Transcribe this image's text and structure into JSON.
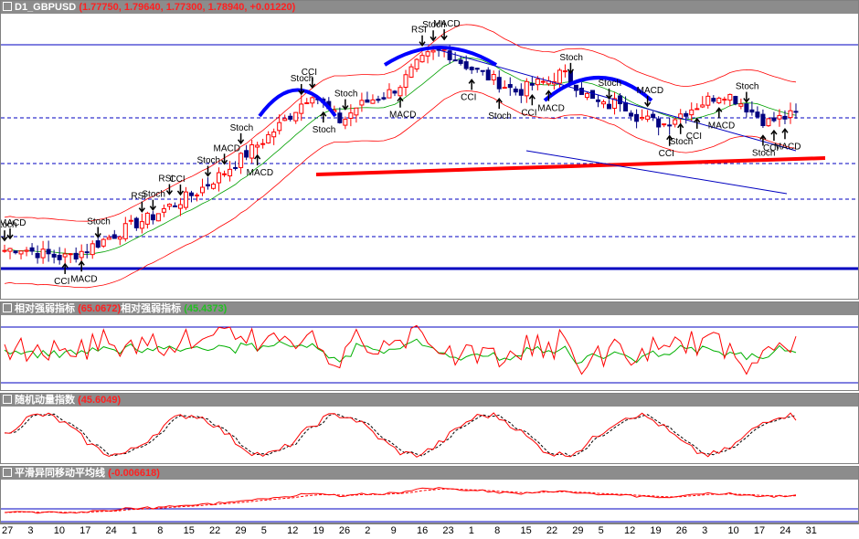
{
  "main": {
    "symbol": "D1_GBPUSD",
    "ohlc": "(1.77750, 1.79640, 1.77300, 1.78940, +0.01220)"
  },
  "rsi": {
    "title": "相对强弱指标",
    "value1": "(65.0672)",
    "title2": "相对强弱指标",
    "value2": "(45.4373)"
  },
  "stoch": {
    "title": "随机动量指数",
    "value": "(45.6049)"
  },
  "macd": {
    "title": "平滑异同移动平均线",
    "value": "(-0.006618)"
  },
  "colors": {
    "candle_up": "#ff0000",
    "candle_down": "#000080",
    "trend_red": "#ff0000",
    "trend_blue": "#0000ff",
    "header_bg": "#8c8c8c"
  },
  "annotations": [
    {
      "label": "Stoch",
      "i": 0,
      "dir": "down"
    },
    {
      "label": "MACD",
      "i": 1,
      "dir": "down"
    },
    {
      "label": "CCI",
      "i": 11,
      "dir": "up"
    },
    {
      "label": "MACD",
      "i": 14,
      "dir": "up"
    },
    {
      "label": "Stoch",
      "i": 17,
      "dir": "down"
    },
    {
      "label": "RSI",
      "i": 25,
      "dir": "down"
    },
    {
      "label": "Stoch",
      "i": 27,
      "dir": "down"
    },
    {
      "label": "RSI",
      "i": 30,
      "dir": "down"
    },
    {
      "label": "CCI",
      "i": 32,
      "dir": "down"
    },
    {
      "label": "Stoch",
      "i": 37,
      "dir": "down"
    },
    {
      "label": "MACD",
      "i": 40,
      "dir": "down"
    },
    {
      "label": "Stoch",
      "i": 43,
      "dir": "down"
    },
    {
      "label": "MACD",
      "i": 46,
      "dir": "up"
    },
    {
      "label": "Stoch",
      "i": 54,
      "dir": "down"
    },
    {
      "label": "CCI",
      "i": 56,
      "dir": "down"
    },
    {
      "label": "Stoch",
      "i": 58,
      "dir": "up"
    },
    {
      "label": "Stoch",
      "i": 62,
      "dir": "down"
    },
    {
      "label": "MACD",
      "i": 72,
      "dir": "up"
    },
    {
      "label": "RSI",
      "i": 76,
      "dir": "down"
    },
    {
      "label": "Stoch",
      "i": 78,
      "dir": "down"
    },
    {
      "label": "MACD",
      "i": 80,
      "dir": "down"
    },
    {
      "label": "CCI",
      "i": 85,
      "dir": "up"
    },
    {
      "label": "Stoch",
      "i": 90,
      "dir": "up"
    },
    {
      "label": "CCI",
      "i": 96,
      "dir": "up"
    },
    {
      "label": "MACD",
      "i": 99,
      "dir": "up"
    },
    {
      "label": "Stoch",
      "i": 103,
      "dir": "down"
    },
    {
      "label": "Stoch",
      "i": 110,
      "dir": "down"
    },
    {
      "label": "MACD",
      "i": 117,
      "dir": "down"
    },
    {
      "label": "CCI",
      "i": 121,
      "dir": "up"
    },
    {
      "label": "Stoch",
      "i": 123,
      "dir": "up"
    },
    {
      "label": "CCI",
      "i": 126,
      "dir": "up"
    },
    {
      "label": "MACD",
      "i": 130,
      "dir": "up"
    },
    {
      "label": "Stoch",
      "i": 135,
      "dir": "down"
    },
    {
      "label": "Stoch",
      "i": 138,
      "dir": "up"
    },
    {
      "label": "CCI",
      "i": 140,
      "dir": "up"
    },
    {
      "label": "MACD",
      "i": 142,
      "dir": "up"
    }
  ],
  "chart_data": {
    "type": "candlestick",
    "title": "D1_GBPUSD",
    "x_tick_labels": [
      "27",
      "3",
      "10",
      "17",
      "24",
      "1",
      "8",
      "15",
      "22",
      "29",
      "5",
      "12",
      "19",
      "26",
      "2",
      "9",
      "16",
      "23",
      "1",
      "8",
      "15",
      "22",
      "29",
      "5",
      "12",
      "19",
      "26",
      "3",
      "10",
      "17",
      "24",
      "31"
    ],
    "close_path": [
      1.7,
      1.702,
      1.699,
      1.697,
      1.695,
      1.698,
      1.703,
      1.708,
      1.713,
      1.718,
      1.722,
      1.728,
      1.733,
      1.738,
      1.745,
      1.752,
      1.76,
      1.768,
      1.776,
      1.785,
      1.795,
      1.805,
      1.794,
      1.785,
      1.795,
      1.8,
      1.803,
      1.81,
      1.822,
      1.83,
      1.833,
      1.826,
      1.82,
      1.815,
      1.81,
      1.805,
      1.81,
      1.812,
      1.818,
      1.81,
      1.8,
      1.795,
      1.8,
      1.79,
      1.786,
      1.784,
      1.79,
      1.795,
      1.8,
      1.805,
      1.8,
      1.792,
      1.785,
      1.788,
      1.79
    ],
    "macd_value": -0.006618,
    "rsi_value": 65.0672,
    "rsi_value2": 45.4373,
    "stoch_value": 45.6049
  }
}
